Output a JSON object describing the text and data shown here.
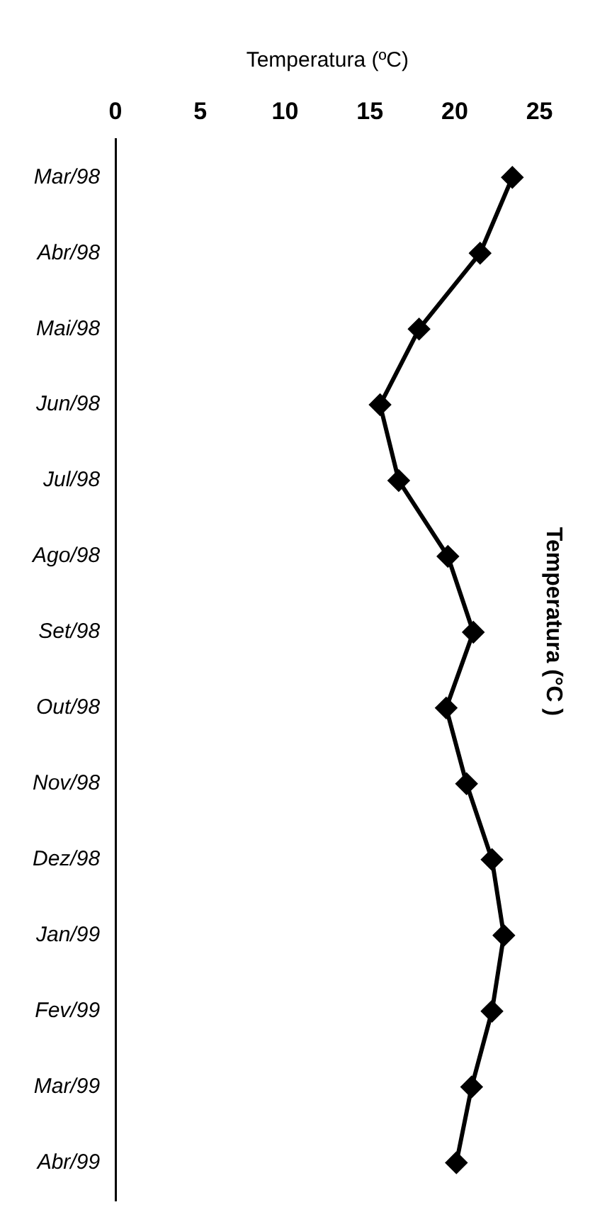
{
  "chart_data": {
    "type": "line",
    "title": "Temperatura (°C )",
    "xlabel": "Temperatura (ºC)",
    "categories": [
      "Mar/98",
      "Abr/98",
      "Mai/98",
      "Jun/98",
      "Jul/98",
      "Ago/98",
      "Set/98",
      "Out/98",
      "Nov/98",
      "Dez/98",
      "Jan/99",
      "Fev/99",
      "Mar/99",
      "Abr/99"
    ],
    "series": [
      {
        "color": "#000000",
        "values": [
          23.4,
          21.5,
          17.9,
          15.6,
          16.7,
          19.6,
          21.1,
          19.5,
          20.7,
          22.2,
          22.9,
          22.2,
          21.0,
          20.1
        ]
      }
    ],
    "orientation": "horizontal",
    "xlim": [
      0,
      25
    ],
    "xticks": [
      0,
      5,
      10,
      15,
      20,
      25
    ],
    "grid": false,
    "legend": false,
    "marker": "diamond",
    "line_style": "solid"
  }
}
